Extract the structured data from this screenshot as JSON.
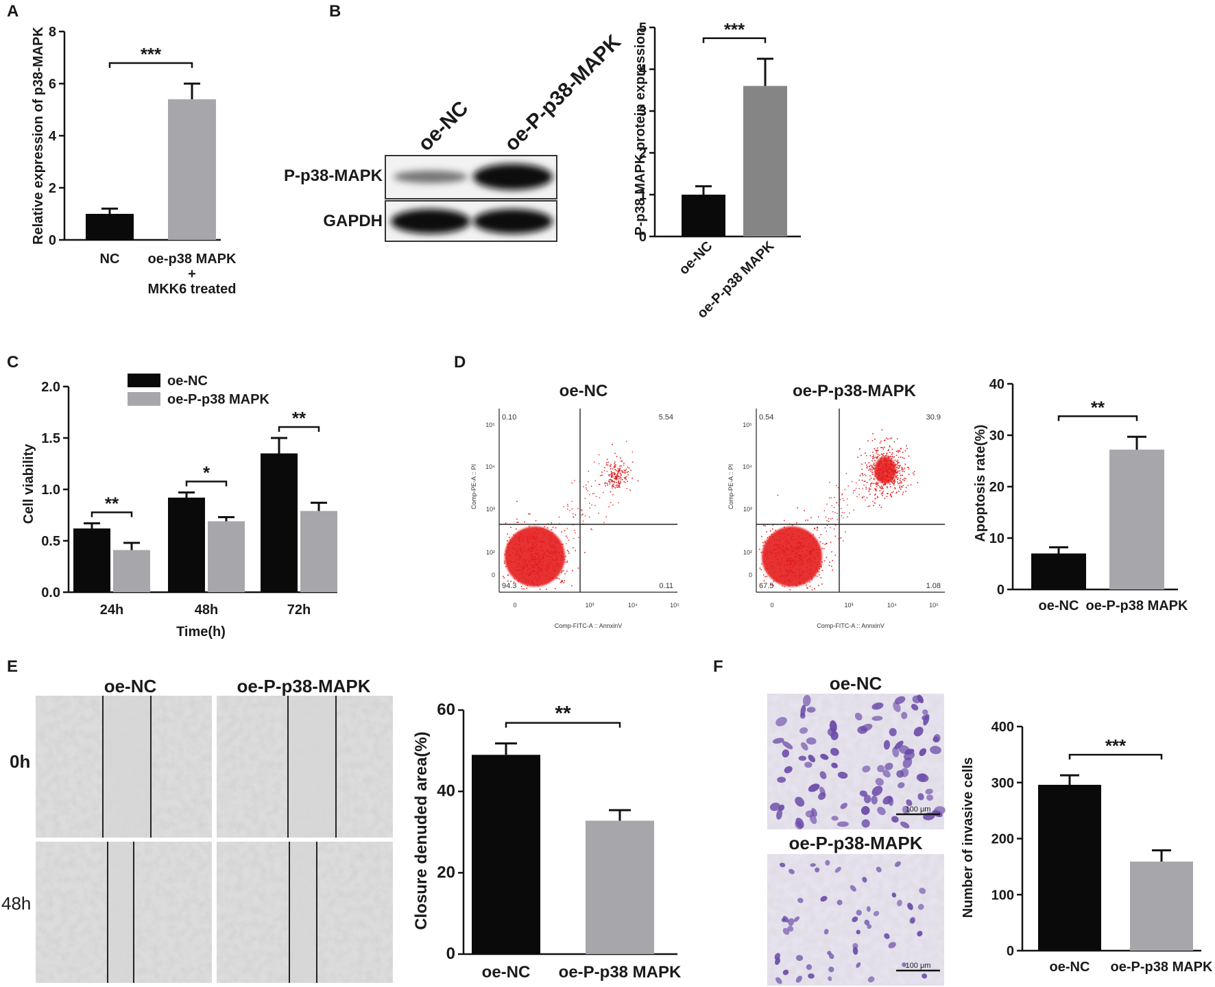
{
  "colors": {
    "black": "#0a0a0a",
    "gray_light": "#a7a7ab",
    "gray_dark": "#858585",
    "dots": "#e41b1b",
    "stain": "#6a4aa8"
  },
  "panel_letters": [
    "A",
    "B",
    "C",
    "D",
    "E",
    "F"
  ],
  "chart_data": [
    {
      "panel": "A",
      "type": "bar",
      "categories": [
        "NC",
        "oe-p38 MAPK\n+\nMKK6 treated"
      ],
      "values": [
        1.0,
        5.4
      ],
      "errors": [
        0.2,
        0.6
      ],
      "colors": [
        "#0a0a0a",
        "#a7a7ab"
      ],
      "ylabel": "Relative expression of p38-MAPK",
      "ylim": [
        0,
        8
      ],
      "yticks": [
        0,
        2,
        4,
        6,
        8
      ],
      "significance": [
        {
          "pair": [
            0,
            1
          ],
          "label": "***"
        }
      ]
    },
    {
      "panel": "B",
      "type": "bar",
      "categories": [
        "oe-NC",
        "oe-P-p38 MAPK"
      ],
      "values": [
        1.0,
        3.6
      ],
      "errors": [
        0.2,
        0.65
      ],
      "colors": [
        "#0a0a0a",
        "#858585"
      ],
      "ylabel": "P-p38 MAPK protein expression",
      "ylim": [
        0,
        5
      ],
      "yticks": [
        0,
        1,
        2,
        3,
        4,
        5
      ],
      "significance": [
        {
          "pair": [
            0,
            1
          ],
          "label": "***"
        }
      ]
    },
    {
      "panel": "C",
      "type": "bar",
      "categories": [
        "24h",
        "48h",
        "72h"
      ],
      "series": [
        {
          "name": "oe-NC",
          "values": [
            0.62,
            0.92,
            1.35
          ],
          "errors": [
            0.05,
            0.05,
            0.15
          ],
          "color": "#0a0a0a"
        },
        {
          "name": "oe-P-p38 MAPK",
          "values": [
            0.41,
            0.69,
            0.79
          ],
          "errors": [
            0.07,
            0.04,
            0.08
          ],
          "color": "#a7a7ab"
        }
      ],
      "xlabel": "Time(h)",
      "ylabel": "Cell viability",
      "ylim": [
        0,
        2.0
      ],
      "yticks": [
        "0.0",
        "0.5",
        "1.0",
        "1.5",
        "2.0"
      ],
      "legend": "top-left",
      "significance": [
        {
          "category": 0,
          "label": "**"
        },
        {
          "category": 1,
          "label": "*"
        },
        {
          "category": 2,
          "label": "**"
        }
      ]
    },
    {
      "panel": "D",
      "type": "bar",
      "categories": [
        "oe-NC",
        "oe-P-p38 MAPK"
      ],
      "values": [
        7.0,
        27.2
      ],
      "errors": [
        1.2,
        2.5
      ],
      "colors": [
        "#0a0a0a",
        "#a7a7ab"
      ],
      "ylabel": "Apoptosis rate(%)",
      "ylim": [
        0,
        40
      ],
      "yticks": [
        0,
        10,
        20,
        30,
        40
      ],
      "significance": [
        {
          "pair": [
            0,
            1
          ],
          "label": "**"
        }
      ]
    },
    {
      "panel": "E",
      "type": "bar",
      "categories": [
        "oe-NC",
        "oe-P-p38 MAPK"
      ],
      "values": [
        49.0,
        32.8
      ],
      "errors": [
        2.8,
        2.6
      ],
      "colors": [
        "#0a0a0a",
        "#a7a7ab"
      ],
      "ylabel": "Closure denuded area(%)",
      "ylim": [
        0,
        60
      ],
      "yticks": [
        0,
        20,
        40,
        60
      ],
      "significance": [
        {
          "pair": [
            0,
            1
          ],
          "label": "**"
        }
      ]
    },
    {
      "panel": "F",
      "type": "bar",
      "categories": [
        "oe-NC",
        "oe-P-p38 MAPK"
      ],
      "values": [
        296,
        159
      ],
      "errors": [
        17,
        20
      ],
      "colors": [
        "#0a0a0a",
        "#a7a7ab"
      ],
      "ylabel": "Number of invasive cells",
      "ylim": [
        0,
        400
      ],
      "yticks": [
        0,
        100,
        200,
        300,
        400
      ],
      "significance": [
        {
          "pair": [
            0,
            1
          ],
          "label": "***"
        }
      ]
    },
    {
      "panel": "D-flow",
      "type": "scatter",
      "plots": [
        {
          "title": "oe-NC",
          "quadrants": {
            "ul": "0.10",
            "ur": "5.54",
            "ll": "94.3",
            "lr": "0.11"
          }
        },
        {
          "title": "oe-P-p38-MAPK",
          "quadrants": {
            "ul": "0.54",
            "ur": "30.9",
            "ll": "67.5",
            "lr": "1.08"
          }
        }
      ],
      "xlabel": "Comp-FITC-A :: AnnxinV",
      "ylabel": "Comp-PE-A :: PI",
      "x_tick_labels": [
        "0",
        "10³",
        "10⁴",
        "10⁵"
      ],
      "y_tick_labels": [
        "0",
        "10²",
        "10³",
        "10⁴",
        "10⁵"
      ]
    }
  ],
  "western_blot": {
    "lanes": [
      "oe-NC",
      "oe-P-p38-MAPK"
    ],
    "rows": [
      "P-p38-MAPK",
      "GAPDH"
    ]
  },
  "micrographs": {
    "E": {
      "columns": [
        "oe-NC",
        "oe-P-p38-MAPK"
      ],
      "rows": [
        "0h",
        "48h"
      ]
    },
    "F": {
      "titles": [
        "oe-NC",
        "oe-P-p38-MAPK"
      ],
      "scale_bar": "100 μm"
    }
  }
}
